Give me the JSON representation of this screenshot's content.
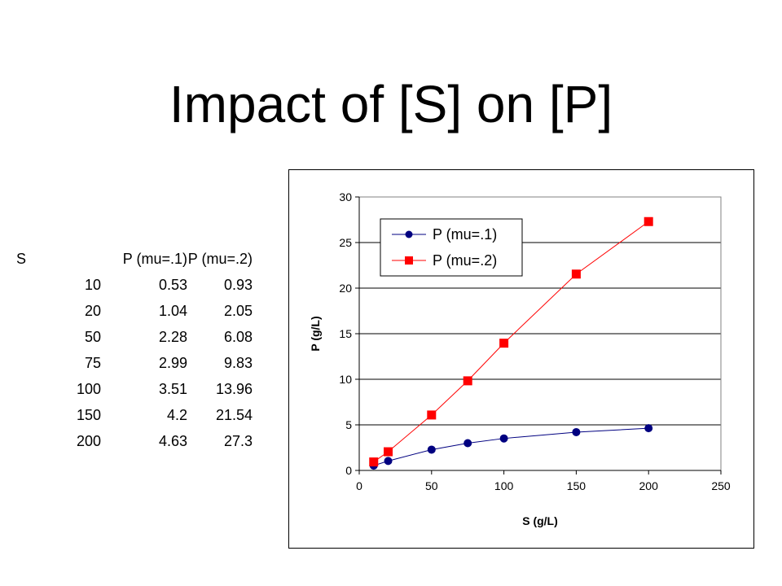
{
  "slide": {
    "title": "Impact of [S] on [P]"
  },
  "table": {
    "headers": [
      "S",
      "P (mu=.1)",
      "P (mu=.2)"
    ],
    "rows": [
      [
        "10",
        "0.53",
        "0.93"
      ],
      [
        "20",
        "1.04",
        "2.05"
      ],
      [
        "50",
        "2.28",
        "6.08"
      ],
      [
        "75",
        "2.99",
        "9.83"
      ],
      [
        "100",
        "3.51",
        "13.96"
      ],
      [
        "150",
        "4.2",
        "21.54"
      ],
      [
        "200",
        "4.63",
        "27.3"
      ]
    ]
  },
  "chart_data": {
    "type": "line",
    "x": [
      10,
      20,
      50,
      75,
      100,
      150,
      200
    ],
    "series": [
      {
        "name": "P (mu=.1)",
        "values": [
          0.53,
          1.04,
          2.28,
          2.99,
          3.51,
          4.2,
          4.63
        ],
        "color": "#000080",
        "marker": "circle"
      },
      {
        "name": "P (mu=.2)",
        "values": [
          0.93,
          2.05,
          6.08,
          9.83,
          13.96,
          21.54,
          27.3
        ],
        "color": "#ff0000",
        "marker": "square"
      }
    ],
    "xlabel": "S (g/L)",
    "ylabel": "P (g/L)",
    "xlim": [
      0,
      250
    ],
    "ylim": [
      0,
      30
    ],
    "xticks": [
      0,
      50,
      100,
      150,
      200,
      250
    ],
    "yticks": [
      0,
      5,
      10,
      15,
      20,
      25,
      30
    ],
    "grid": "horizontal",
    "legend_position": "top-left"
  }
}
